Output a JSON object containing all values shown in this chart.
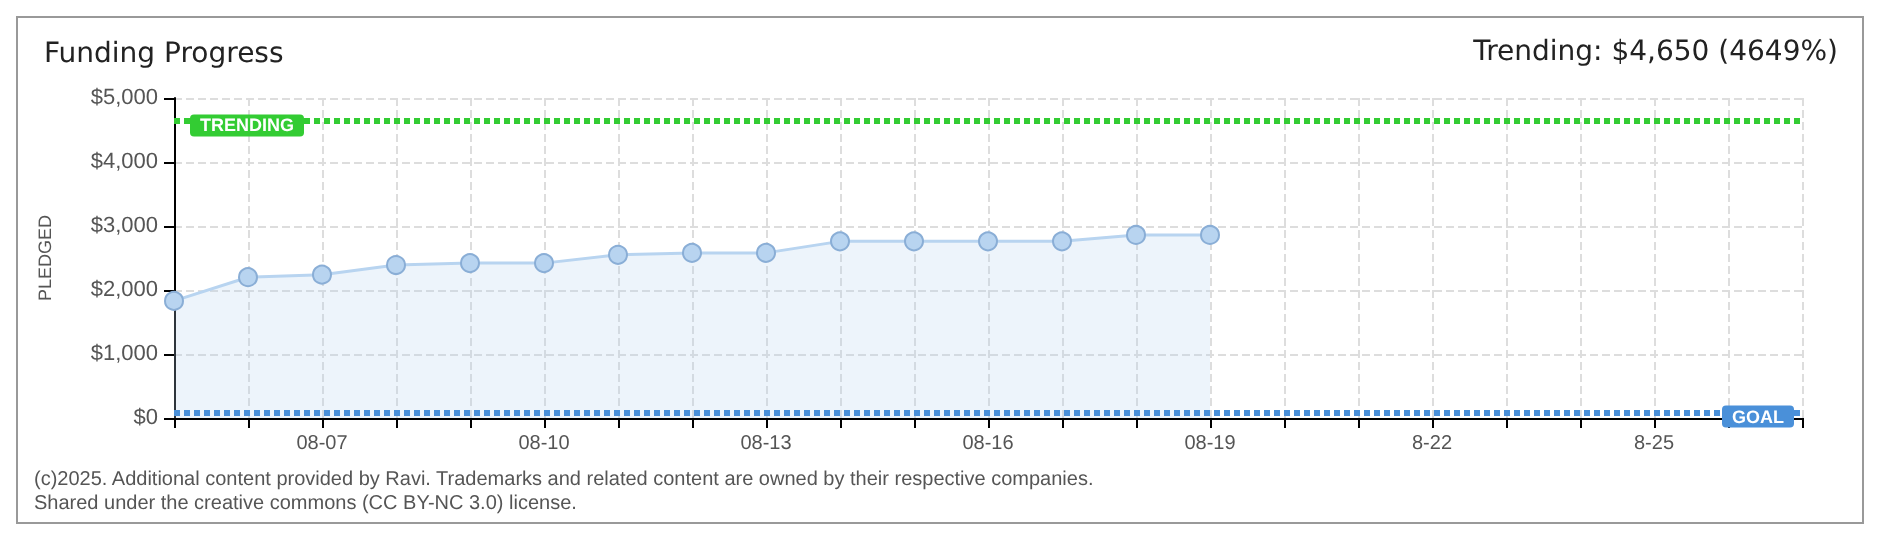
{
  "chart_data": {
    "type": "area",
    "title": "Funding Progress",
    "ylabel": "PLEDGED",
    "annotations": [
      "Trending: $4,650 (4649%)",
      "(c)2025. Additional content provided by Ravi. Trademarks and related content are owned by their respective companies.",
      "Shared under the creative commons (CC BY-NC 3.0) license."
    ],
    "categories": [
      null,
      null,
      "08-07",
      null,
      null,
      "08-10",
      null,
      null,
      "08-13",
      null,
      null,
      "08-16",
      null,
      null,
      "08-19",
      null,
      null,
      "8-22",
      null,
      null,
      "8-25",
      null,
      null
    ],
    "series": [
      {
        "color": "#b8d4f0",
        "values": [
          1830,
          2200,
          2240,
          2390,
          2420,
          2420,
          2550,
          2580,
          2580,
          2760,
          2760,
          2760,
          2760,
          2860,
          2860,
          null,
          null,
          null,
          null,
          null,
          null,
          null,
          null
        ]
      }
    ],
    "ylim": [
      0,
      5000
    ],
    "yticks": [
      {
        "value": 0,
        "label": "$0"
      },
      {
        "value": 1000,
        "label": "$1,000"
      },
      {
        "value": 2000,
        "label": "$2,000"
      },
      {
        "value": 3000,
        "label": "$3,000"
      },
      {
        "value": 4000,
        "label": "$4,000"
      },
      {
        "value": 5000,
        "label": "$5,000"
      }
    ],
    "ref_lines": [
      {
        "axis": "y",
        "value": 4650,
        "label": "TRENDING",
        "color": "#33cc33",
        "line_style": "dotted"
      },
      {
        "axis": "y",
        "value": 100,
        "label": "GOAL",
        "color": "#4a90d9",
        "line_style": "dotted"
      }
    ],
    "grid": true,
    "marker": "circle"
  }
}
